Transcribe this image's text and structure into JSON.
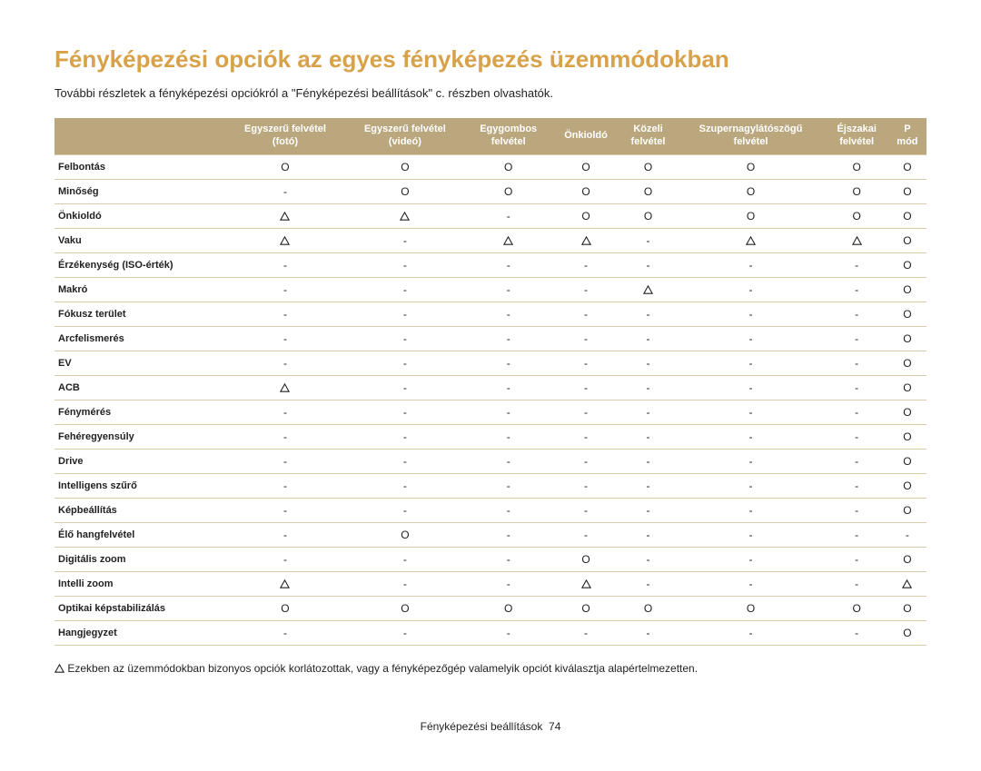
{
  "title": "Fényképezési opciók az egyes fényképezés üzemmódokban",
  "subtitle": "További részletek a fényképezési opciókról a \"Fényképezési beállítások\" c. részben olvashatók.",
  "columns": [
    "Egyszerű felvétel (fotó)",
    "Egyszerű felvétel (videó)",
    "Egygombos felvétel",
    "Önkioldó",
    "Közeli felvétel",
    "Szupernagylátószögű felvétel",
    "Éjszakai felvétel",
    "P mód"
  ],
  "symbols": {
    "circle": "O",
    "dash": "-",
    "triangle": "△"
  },
  "rows": [
    {
      "label": "Felbontás",
      "cells": [
        "O",
        "O",
        "O",
        "O",
        "O",
        "O",
        "O",
        "O"
      ]
    },
    {
      "label": "Minőség",
      "cells": [
        "-",
        "O",
        "O",
        "O",
        "O",
        "O",
        "O",
        "O"
      ]
    },
    {
      "label": "Önkioldó",
      "cells": [
        "T",
        "T",
        "-",
        "O",
        "O",
        "O",
        "O",
        "O"
      ]
    },
    {
      "label": "Vaku",
      "cells": [
        "T",
        "-",
        "T",
        "T",
        "-",
        "T",
        "T",
        "O"
      ]
    },
    {
      "label": "Érzékenység (ISO-érték)",
      "cells": [
        "-",
        "-",
        "-",
        "-",
        "-",
        "-",
        "-",
        "O"
      ]
    },
    {
      "label": "Makró",
      "cells": [
        "-",
        "-",
        "-",
        "-",
        "T",
        "-",
        "-",
        "O"
      ]
    },
    {
      "label": "Fókusz terület",
      "cells": [
        "-",
        "-",
        "-",
        "-",
        "-",
        "-",
        "-",
        "O"
      ]
    },
    {
      "label": "Arcfelismerés",
      "cells": [
        "-",
        "-",
        "-",
        "-",
        "-",
        "-",
        "-",
        "O"
      ]
    },
    {
      "label": "EV",
      "cells": [
        "-",
        "-",
        "-",
        "-",
        "-",
        "-",
        "-",
        "O"
      ]
    },
    {
      "label": "ACB",
      "cells": [
        "T",
        "-",
        "-",
        "-",
        "-",
        "-",
        "-",
        "O"
      ]
    },
    {
      "label": "Fénymérés",
      "cells": [
        "-",
        "-",
        "-",
        "-",
        "-",
        "-",
        "-",
        "O"
      ]
    },
    {
      "label": "Fehéregyensúly",
      "cells": [
        "-",
        "-",
        "-",
        "-",
        "-",
        "-",
        "-",
        "O"
      ]
    },
    {
      "label": "Drive",
      "cells": [
        "-",
        "-",
        "-",
        "-",
        "-",
        "-",
        "-",
        "O"
      ]
    },
    {
      "label": "Intelligens szűrő",
      "cells": [
        "-",
        "-",
        "-",
        "-",
        "-",
        "-",
        "-",
        "O"
      ]
    },
    {
      "label": "Képbeállítás",
      "cells": [
        "-",
        "-",
        "-",
        "-",
        "-",
        "-",
        "-",
        "O"
      ]
    },
    {
      "label": "Élő hangfelvétel",
      "cells": [
        "-",
        "O",
        "-",
        "-",
        "-",
        "-",
        "-",
        "-"
      ]
    },
    {
      "label": "Digitális zoom",
      "cells": [
        "-",
        "-",
        "-",
        "O",
        "-",
        "-",
        "-",
        "O"
      ]
    },
    {
      "label": "Intelli zoom",
      "cells": [
        "T",
        "-",
        "-",
        "T",
        "-",
        "-",
        "-",
        "T"
      ]
    },
    {
      "label": "Optikai képstabilizálás",
      "cells": [
        "O",
        "O",
        "O",
        "O",
        "O",
        "O",
        "O",
        "O"
      ]
    },
    {
      "label": "Hangjegyzet",
      "cells": [
        "-",
        "-",
        "-",
        "-",
        "-",
        "-",
        "-",
        "O"
      ]
    }
  ],
  "footnote_symbol": "△",
  "footnote": "Ezekben az üzemmódokban bizonyos opciók korlátozottak, vagy a fényképezőgép valamelyik opciót kiválasztja alapértelmezetten.",
  "footer_text": "Fényképezési beállítások",
  "footer_page": "74"
}
